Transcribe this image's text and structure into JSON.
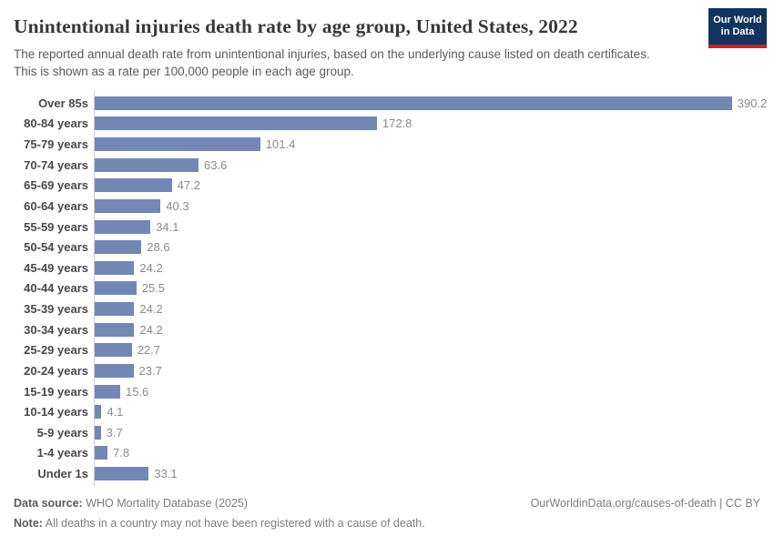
{
  "header": {
    "title": "Unintentional injuries death rate by age group, United States, 2022",
    "subtitle": "The reported annual death rate from unintentional injuries, based on the underlying cause listed on death certificates. This is shown as a rate per 100,000 people in each age group.",
    "logo": {
      "line1": "Our World",
      "line2": "in Data"
    }
  },
  "chart_data": {
    "type": "bar",
    "orientation": "horizontal",
    "title": "Unintentional injuries death rate by age group, United States, 2022",
    "xlabel": "",
    "ylabel": "",
    "grid": false,
    "bar_color": "#7387b4",
    "categories": [
      "Over 85s",
      "80-84 years",
      "75-79 years",
      "70-74 years",
      "65-69 years",
      "60-64 years",
      "55-59 years",
      "50-54 years",
      "45-49 years",
      "40-44 years",
      "35-39 years",
      "30-34 years",
      "25-29 years",
      "20-24 years",
      "15-19 years",
      "10-14 years",
      "5-9 years",
      "1-4 years",
      "Under 1s"
    ],
    "values": [
      390.2,
      172.8,
      101.4,
      63.6,
      47.2,
      40.3,
      34.1,
      28.6,
      24.2,
      25.5,
      24.2,
      24.2,
      22.7,
      23.7,
      15.6,
      4.1,
      3.7,
      7.8,
      33.1
    ]
  },
  "footer": {
    "source_label": "Data source:",
    "source_text": "WHO Mortality Database (2025)",
    "note_label": "Note:",
    "note_text": "All deaths in a country may not have been registered with a cause of death.",
    "link_text": "OurWorldinData.org/causes-of-death | CC BY"
  },
  "colors": {
    "bar": "#7387b4",
    "axis_line": "#cccccc",
    "logo_bg": "#12355f",
    "logo_accent": "#c0262d",
    "title_text": "#383838",
    "subtitle_text": "#5b5b5b",
    "value_text": "#8b8b8b"
  }
}
